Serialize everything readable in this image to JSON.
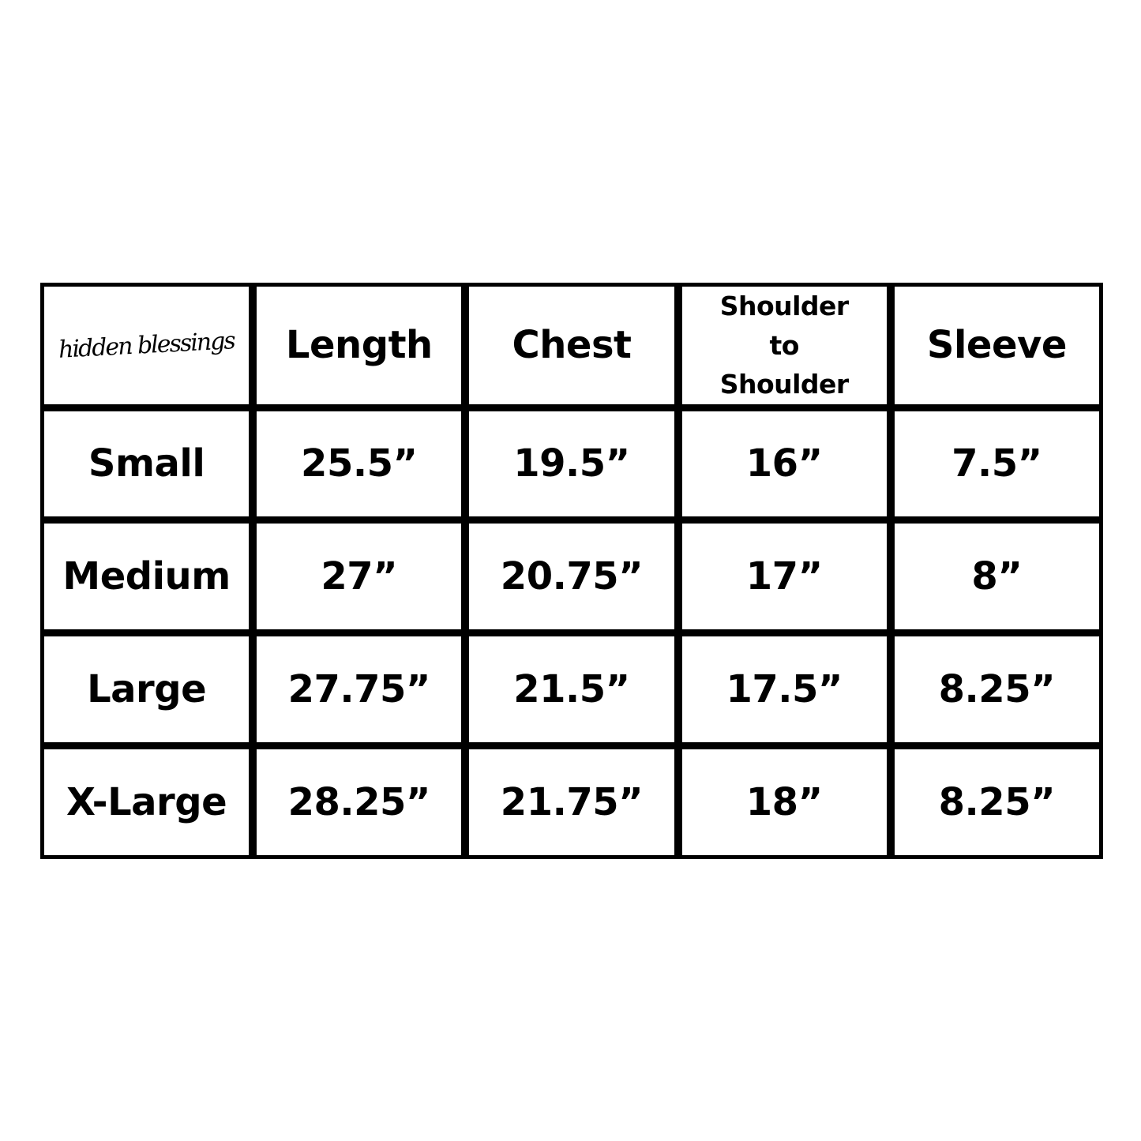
{
  "logo": {
    "text": "hidden blessings"
  },
  "headers": [
    "Length",
    "Chest",
    "Shoulder to Shoulder",
    "Sleeve"
  ],
  "header_lines": {
    "shoulder": [
      "Shoulder",
      "to",
      "Shoulder"
    ]
  },
  "rows": [
    {
      "size": "Small",
      "values": [
        "25.5”",
        "19.5”",
        "16”",
        "7.5”"
      ]
    },
    {
      "size": "Medium",
      "values": [
        "27”",
        "20.75”",
        "17”",
        "8”"
      ]
    },
    {
      "size": "Large",
      "values": [
        "27.75”",
        "21.5”",
        "17.5”",
        "8.25”"
      ]
    },
    {
      "size": "X-Large",
      "values": [
        "28.25”",
        "21.75”",
        "18”",
        "8.25”"
      ]
    }
  ]
}
